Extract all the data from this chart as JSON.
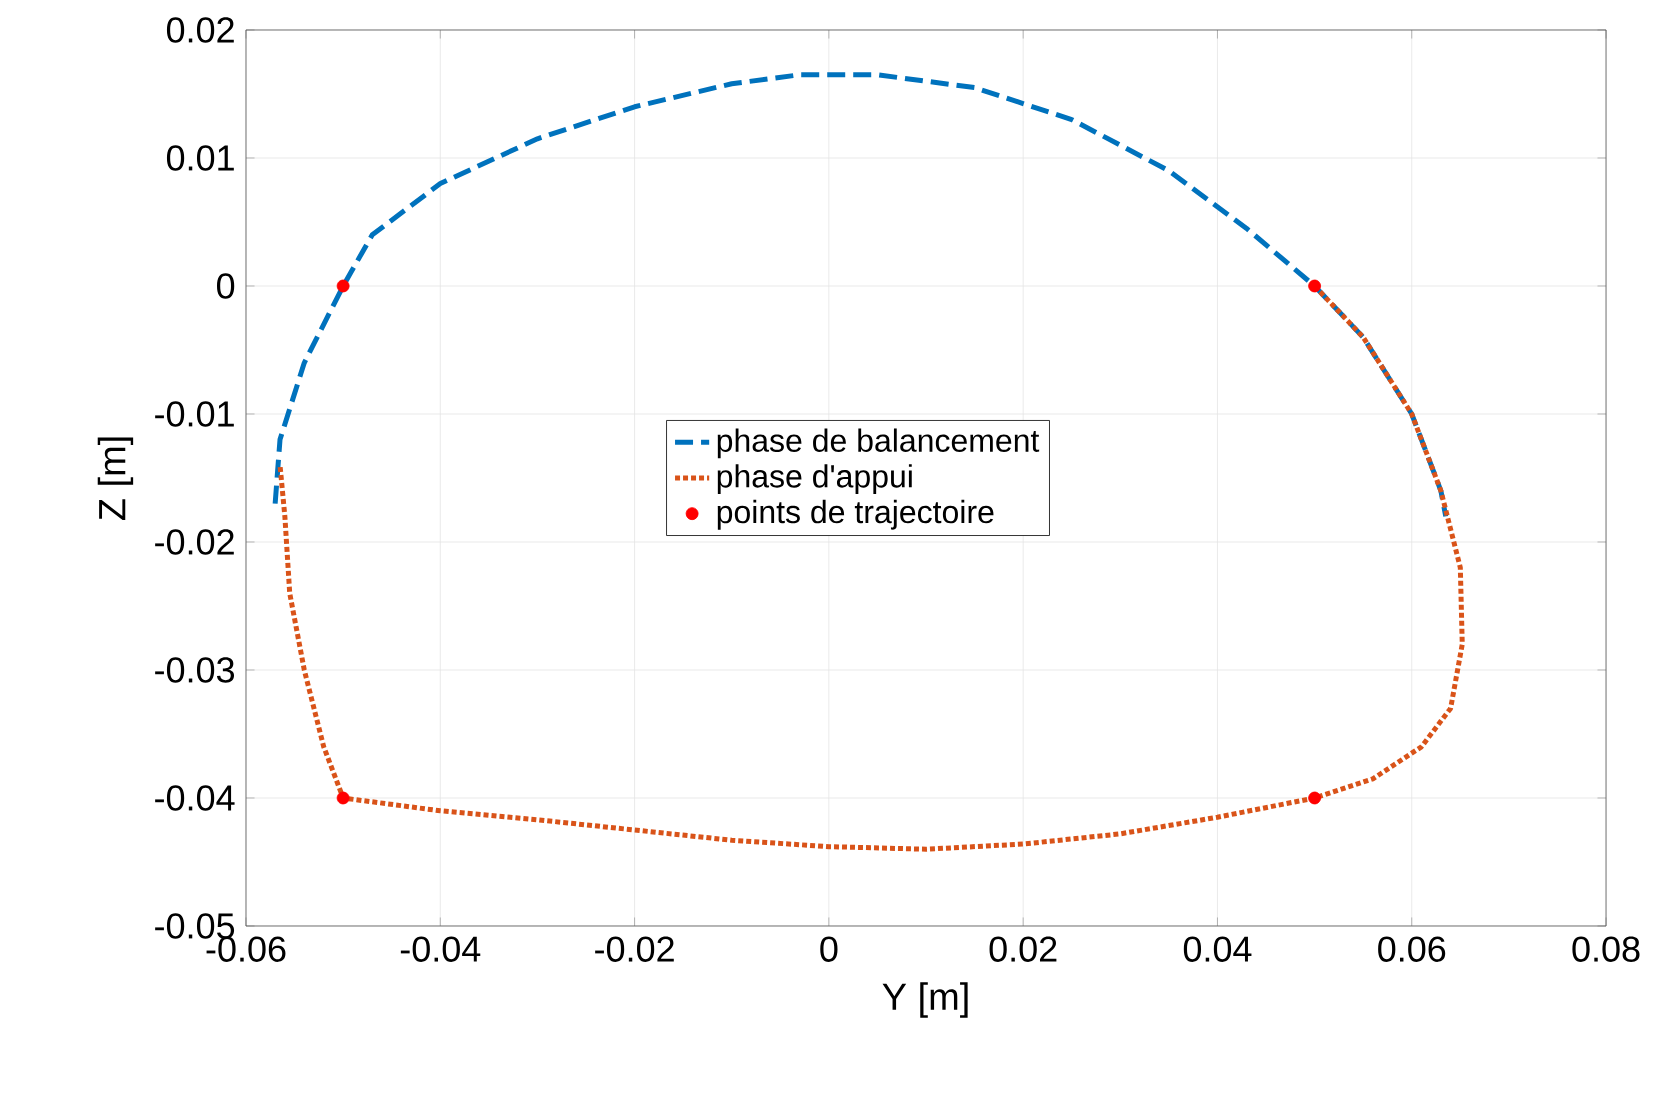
{
  "chart_data": {
    "type": "line",
    "xlabel": "Y [m]",
    "ylabel": "Z [m]",
    "xlim": [
      -0.06,
      0.08
    ],
    "ylim": [
      -0.05,
      0.02
    ],
    "xticks": [
      -0.06,
      -0.04,
      -0.02,
      0,
      0.02,
      0.04,
      0.06,
      0.08
    ],
    "yticks": [
      -0.05,
      -0.04,
      -0.03,
      -0.02,
      -0.01,
      0,
      0.01,
      0.02
    ],
    "grid": true,
    "legend": "center",
    "series": [
      {
        "name": "phase de balancement",
        "marker": "none",
        "line_style": "dashed",
        "color": "#0072bd",
        "x": [
          -0.057,
          -0.0565,
          -0.054,
          -0.05,
          -0.047,
          -0.04,
          -0.03,
          -0.02,
          -0.01,
          -0.003,
          0.005,
          0.015,
          0.025,
          0.035,
          0.043,
          0.05,
          0.055,
          0.06,
          0.063,
          0.0635
        ],
        "values": [
          -0.017,
          -0.012,
          -0.006,
          0,
          0.004,
          0.008,
          0.0115,
          0.014,
          0.0158,
          0.0165,
          0.0165,
          0.0155,
          0.013,
          0.009,
          0.0045,
          0,
          -0.004,
          -0.01,
          -0.016,
          -0.018
        ]
      },
      {
        "name": "phase d'appui",
        "marker": "none",
        "line_style": "dotted",
        "color": "#d95319",
        "x": [
          0.05,
          0.055,
          0.06,
          0.063,
          0.065,
          0.0652,
          0.064,
          0.061,
          0.056,
          0.05,
          0.04,
          0.03,
          0.02,
          0.01,
          0,
          -0.01,
          -0.02,
          -0.03,
          -0.04,
          -0.05,
          -0.052,
          -0.054,
          -0.0555,
          -0.056,
          -0.0565
        ],
        "values": [
          0,
          -0.004,
          -0.01,
          -0.016,
          -0.022,
          -0.028,
          -0.033,
          -0.036,
          -0.0385,
          -0.04,
          -0.0415,
          -0.0428,
          -0.0436,
          -0.044,
          -0.0438,
          -0.0433,
          -0.0425,
          -0.0417,
          -0.041,
          -0.04,
          -0.036,
          -0.03,
          -0.024,
          -0.018,
          -0.014
        ]
      },
      {
        "name": "points de trajectoire",
        "type": "scatter",
        "marker": "circle",
        "color": "#ff0000",
        "x": [
          -0.05,
          0.05,
          -0.05,
          0.05
        ],
        "values": [
          0,
          0,
          -0.04,
          -0.04
        ]
      }
    ]
  }
}
